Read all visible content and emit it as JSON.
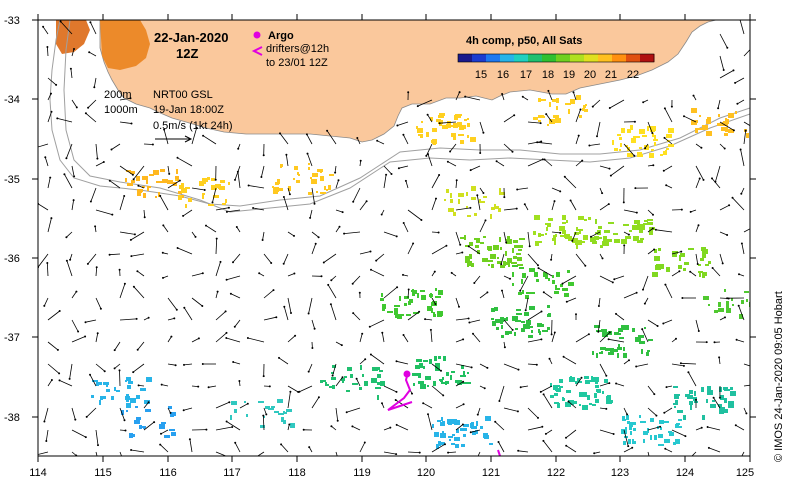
{
  "map": {
    "date": "22-Jan-2020",
    "time": "12Z",
    "legend_argo": "Argo",
    "legend_drifters": "drifters@12h",
    "legend_drifters_to": "to 23/01 12Z",
    "contour_200": "200m",
    "contour_1000": "1000m",
    "product": "NRT00 GSL",
    "product_time": "19-Jan 18:00Z",
    "scale_label": "0.5m/s (1kt 24h)",
    "colorbar_title": "4h comp, p50, All Sats",
    "colorbar_ticks": [
      "15",
      "16",
      "17",
      "18",
      "19",
      "20",
      "21",
      "22"
    ],
    "credit": "© IMOS 24-Jan-2020 09:05 Hobart",
    "x_ticks": [
      "114",
      "115",
      "116",
      "117",
      "118",
      "119",
      "120",
      "121",
      "122",
      "123",
      "124",
      "125"
    ],
    "y_ticks": [
      "-33",
      "-34",
      "-35",
      "-36",
      "-37",
      "-38"
    ],
    "colors": {
      "land": "#fac89c",
      "coast": "#9a9a9a",
      "contour": "#a0a0a0",
      "argo": "#e000e0",
      "drifter": "#e000e0"
    },
    "colorbar_colors": [
      "#1a1a8c",
      "#1c3cd0",
      "#1e78f0",
      "#28b4e8",
      "#20d0c0",
      "#20c070",
      "#30c030",
      "#70d020",
      "#b0e020",
      "#e0e020",
      "#ffc020",
      "#ff9010",
      "#e05010",
      "#b01010"
    ],
    "extent": {
      "lon_min": 114,
      "lon_max": 125,
      "lat_min": -38.5,
      "lat_max": -33
    }
  }
}
